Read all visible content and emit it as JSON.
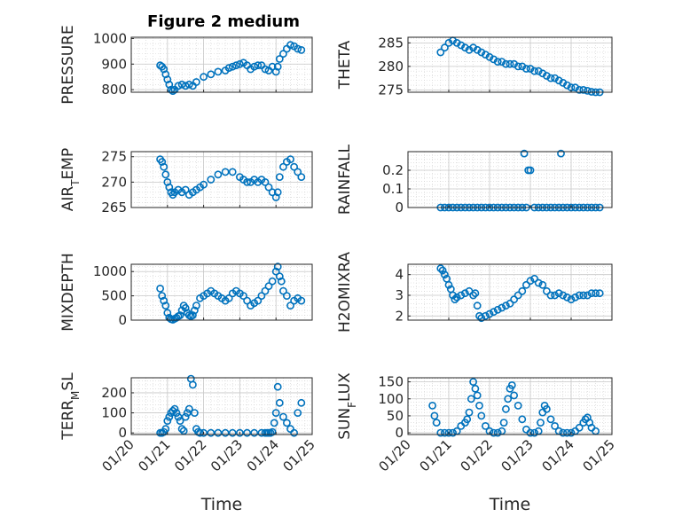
{
  "figure_title": "Figure 2 medium",
  "marker_color": "#0072bd",
  "xaxis": {
    "label": "Time",
    "ticks": [
      "01/20",
      "01/21",
      "01/22",
      "01/23",
      "01/24",
      "01/25"
    ],
    "range": [
      0,
      5
    ]
  },
  "chart_data": [
    {
      "type": "scatter",
      "ylabel": "PRESSURE",
      "ylim": [
        790,
        1005
      ],
      "yticks": [
        800,
        900,
        1000
      ],
      "grid": true,
      "x": [
        0.8,
        0.85,
        0.9,
        0.95,
        1.0,
        1.05,
        1.1,
        1.15,
        1.2,
        1.3,
        1.4,
        1.5,
        1.6,
        1.7,
        1.8,
        2.0,
        2.2,
        2.4,
        2.6,
        2.7,
        2.8,
        2.9,
        3.0,
        3.1,
        3.2,
        3.3,
        3.4,
        3.5,
        3.6,
        3.7,
        3.8,
        3.9,
        4.0,
        4.05,
        4.1,
        4.2,
        4.3,
        4.4,
        4.5,
        4.6,
        4.7
      ],
      "y": [
        895,
        890,
        880,
        860,
        840,
        820,
        800,
        795,
        800,
        815,
        820,
        815,
        820,
        815,
        830,
        850,
        860,
        870,
        875,
        885,
        890,
        895,
        900,
        905,
        895,
        880,
        890,
        895,
        895,
        880,
        875,
        890,
        870,
        890,
        920,
        940,
        960,
        975,
        970,
        960,
        955
      ]
    },
    {
      "type": "scatter",
      "ylabel": "THETA",
      "ylim": [
        274.5,
        286.2
      ],
      "yticks": [
        275,
        280,
        285
      ],
      "grid": true,
      "x": [
        0.8,
        0.9,
        1.0,
        1.1,
        1.2,
        1.3,
        1.4,
        1.5,
        1.6,
        1.7,
        1.8,
        1.9,
        2.0,
        2.1,
        2.2,
        2.3,
        2.4,
        2.5,
        2.6,
        2.7,
        2.8,
        2.9,
        3.0,
        3.1,
        3.2,
        3.3,
        3.4,
        3.5,
        3.6,
        3.7,
        3.8,
        3.9,
        4.0,
        4.1,
        4.2,
        4.3,
        4.4,
        4.5,
        4.6,
        4.7
      ],
      "y": [
        283,
        284,
        285,
        285.5,
        285,
        284.5,
        284,
        283.5,
        284,
        283.5,
        283,
        282.5,
        282,
        281.5,
        281,
        281,
        280.5,
        280.5,
        280.5,
        280,
        280,
        279.5,
        279.5,
        279,
        279,
        278.5,
        278,
        277.5,
        277.5,
        277,
        276.5,
        276,
        275.5,
        275.5,
        275,
        275,
        274.8,
        274.6,
        274.5,
        274.5
      ]
    },
    {
      "type": "scatter",
      "ylabel": "AIR_TEMP",
      "ylim": [
        265,
        276
      ],
      "yticks": [
        265,
        270,
        275
      ],
      "grid": true,
      "x": [
        0.8,
        0.85,
        0.9,
        0.95,
        1.0,
        1.05,
        1.1,
        1.15,
        1.2,
        1.3,
        1.4,
        1.5,
        1.6,
        1.7,
        1.8,
        1.9,
        2.0,
        2.2,
        2.4,
        2.6,
        2.8,
        3.0,
        3.1,
        3.2,
        3.3,
        3.4,
        3.5,
        3.6,
        3.7,
        3.8,
        3.9,
        4.0,
        4.05,
        4.1,
        4.2,
        4.3,
        4.4,
        4.5,
        4.6,
        4.7
      ],
      "y": [
        274.5,
        274,
        273,
        271.5,
        270,
        269,
        268,
        267.5,
        268,
        268.5,
        268,
        268.5,
        267.5,
        268,
        268.5,
        269,
        269.5,
        270.5,
        271.5,
        272,
        272,
        271,
        270.5,
        270,
        270,
        270.5,
        270,
        270.5,
        270,
        269,
        268,
        267,
        268,
        271,
        273,
        274,
        274.5,
        273,
        272,
        271
      ]
    },
    {
      "type": "scatter",
      "ylabel": "RAINFALL",
      "ylim": [
        0,
        0.3
      ],
      "yticks": [
        0,
        0.1,
        0.2
      ],
      "grid": true,
      "x": [
        0.8,
        0.9,
        1.0,
        1.1,
        1.2,
        1.3,
        1.4,
        1.5,
        1.6,
        1.7,
        1.8,
        1.9,
        2.0,
        2.1,
        2.2,
        2.3,
        2.4,
        2.5,
        2.6,
        2.7,
        2.8,
        2.85,
        2.9,
        2.95,
        3.0,
        3.1,
        3.2,
        3.3,
        3.4,
        3.5,
        3.6,
        3.7,
        3.75,
        3.8,
        3.9,
        4.0,
        4.1,
        4.2,
        4.3,
        4.4,
        4.5,
        4.6,
        4.7
      ],
      "y": [
        0,
        0,
        0,
        0,
        0,
        0,
        0,
        0,
        0,
        0,
        0,
        0,
        0,
        0,
        0,
        0,
        0,
        0,
        0,
        0,
        0,
        0.29,
        0,
        0.2,
        0.2,
        0,
        0,
        0,
        0,
        0,
        0,
        0,
        0.29,
        0,
        0,
        0,
        0,
        0,
        0,
        0,
        0,
        0,
        0
      ]
    },
    {
      "type": "scatter",
      "ylabel": "MIXDEPTH",
      "ylim": [
        0,
        1150
      ],
      "yticks": [
        0,
        500,
        1000
      ],
      "grid": true,
      "x": [
        0.8,
        0.85,
        0.9,
        0.95,
        1.0,
        1.05,
        1.1,
        1.15,
        1.2,
        1.25,
        1.3,
        1.35,
        1.4,
        1.45,
        1.5,
        1.55,
        1.6,
        1.65,
        1.7,
        1.75,
        1.8,
        1.9,
        2.0,
        2.1,
        2.2,
        2.3,
        2.4,
        2.5,
        2.6,
        2.7,
        2.8,
        2.9,
        3.0,
        3.1,
        3.2,
        3.3,
        3.4,
        3.5,
        3.6,
        3.7,
        3.8,
        3.9,
        4.0,
        4.05,
        4.1,
        4.15,
        4.2,
        4.3,
        4.4,
        4.5,
        4.6,
        4.7
      ],
      "y": [
        650,
        500,
        400,
        300,
        150,
        50,
        20,
        10,
        30,
        50,
        80,
        100,
        200,
        300,
        250,
        150,
        100,
        80,
        100,
        200,
        300,
        450,
        500,
        550,
        600,
        550,
        500,
        450,
        400,
        450,
        550,
        600,
        550,
        500,
        400,
        300,
        350,
        400,
        500,
        600,
        700,
        800,
        1000,
        1100,
        900,
        800,
        600,
        500,
        300,
        400,
        450,
        400
      ]
    },
    {
      "type": "scatter",
      "ylabel": "H2OMIXRA",
      "ylim": [
        1.8,
        4.5
      ],
      "yticks": [
        2,
        3,
        4
      ],
      "grid": true,
      "x": [
        0.8,
        0.85,
        0.9,
        0.95,
        1.0,
        1.05,
        1.1,
        1.15,
        1.2,
        1.3,
        1.4,
        1.5,
        1.6,
        1.65,
        1.7,
        1.75,
        1.8,
        1.9,
        2.0,
        2.1,
        2.2,
        2.3,
        2.4,
        2.5,
        2.6,
        2.7,
        2.8,
        2.9,
        3.0,
        3.1,
        3.2,
        3.3,
        3.4,
        3.5,
        3.6,
        3.7,
        3.8,
        3.9,
        4.0,
        4.1,
        4.2,
        4.3,
        4.4,
        4.5,
        4.6,
        4.7
      ],
      "y": [
        4.3,
        4.2,
        4.0,
        3.8,
        3.5,
        3.3,
        3.0,
        2.8,
        2.9,
        3.0,
        3.1,
        3.2,
        3.0,
        3.1,
        2.5,
        2.0,
        1.9,
        2.0,
        2.1,
        2.2,
        2.3,
        2.4,
        2.5,
        2.6,
        2.8,
        3.0,
        3.2,
        3.5,
        3.7,
        3.8,
        3.6,
        3.5,
        3.2,
        3.0,
        3.0,
        3.1,
        3.0,
        2.9,
        2.8,
        2.9,
        3.0,
        3.0,
        3.0,
        3.1,
        3.1,
        3.1
      ]
    },
    {
      "type": "scatter",
      "ylabel": "TERR_MSL",
      "ylim": [
        -8,
        275
      ],
      "yticks": [
        0,
        100,
        200
      ],
      "grid": true,
      "x": [
        0.8,
        0.85,
        0.9,
        0.95,
        1.0,
        1.05,
        1.1,
        1.15,
        1.2,
        1.25,
        1.3,
        1.35,
        1.4,
        1.45,
        1.5,
        1.55,
        1.6,
        1.65,
        1.7,
        1.75,
        1.8,
        1.85,
        1.9,
        2.0,
        2.2,
        2.4,
        2.6,
        2.8,
        3.0,
        3.2,
        3.4,
        3.6,
        3.7,
        3.75,
        3.8,
        3.85,
        3.9,
        3.95,
        4.0,
        4.05,
        4.1,
        4.2,
        4.3,
        4.4,
        4.5,
        4.6,
        4.7
      ],
      "y": [
        0,
        0,
        5,
        20,
        60,
        80,
        100,
        110,
        120,
        100,
        80,
        60,
        20,
        10,
        80,
        100,
        120,
        270,
        240,
        100,
        20,
        5,
        0,
        0,
        0,
        0,
        0,
        0,
        0,
        0,
        0,
        0,
        0,
        0,
        0,
        0,
        5,
        50,
        100,
        230,
        150,
        80,
        50,
        20,
        0,
        100,
        150
      ]
    },
    {
      "type": "scatter",
      "ylabel": "SUN_FLUX",
      "ylim": [
        -5,
        162
      ],
      "yticks": [
        0,
        50,
        100,
        150
      ],
      "grid": true,
      "x": [
        0.6,
        0.65,
        0.7,
        0.8,
        0.9,
        1.0,
        1.1,
        1.2,
        1.3,
        1.4,
        1.45,
        1.5,
        1.55,
        1.6,
        1.65,
        1.7,
        1.75,
        1.8,
        1.9,
        2.0,
        2.1,
        2.2,
        2.3,
        2.35,
        2.4,
        2.45,
        2.5,
        2.55,
        2.6,
        2.7,
        2.8,
        2.9,
        3.0,
        3.1,
        3.2,
        3.25,
        3.3,
        3.35,
        3.4,
        3.5,
        3.6,
        3.7,
        3.8,
        3.9,
        4.0,
        4.1,
        4.2,
        4.3,
        4.35,
        4.4,
        4.45,
        4.5,
        4.6
      ],
      "y": [
        80,
        50,
        30,
        0,
        0,
        0,
        0,
        5,
        20,
        30,
        40,
        60,
        100,
        150,
        130,
        110,
        80,
        50,
        20,
        5,
        0,
        0,
        5,
        30,
        70,
        100,
        130,
        140,
        110,
        80,
        40,
        10,
        0,
        0,
        5,
        30,
        60,
        80,
        70,
        40,
        20,
        5,
        0,
        0,
        0,
        5,
        15,
        30,
        40,
        45,
        30,
        15,
        5
      ]
    }
  ]
}
